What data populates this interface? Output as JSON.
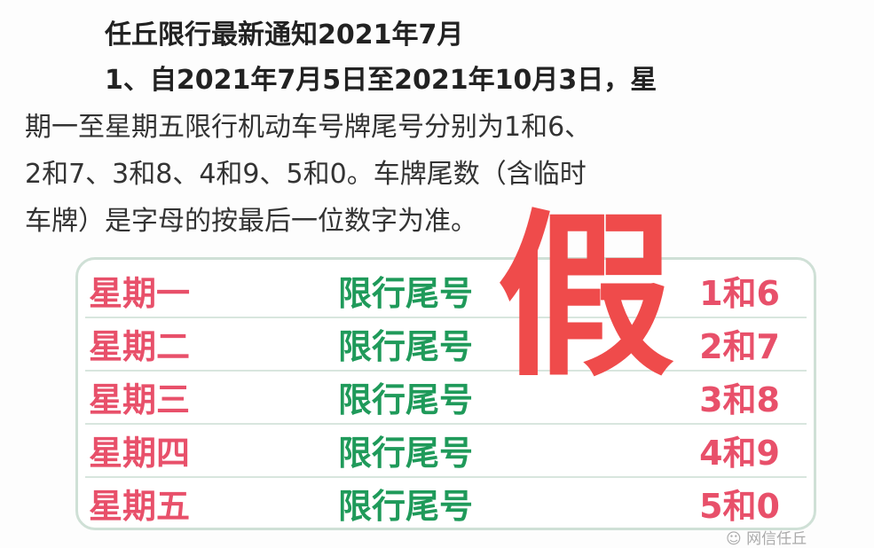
{
  "title": "任丘限行最新通知2021年7月",
  "paragraph": [
    "1、自2021年7月5日至2021年10月3日，星",
    "期一至星期五限行机动车号牌尾号分别为1和6、",
    "2和7、3和8、4和9、5和0。车牌尾数（含临时",
    "车牌）是字母的按最后一位数字为准。"
  ],
  "table": [
    {
      "day": "星期一",
      "label": "限行尾号",
      "numbers": "1和6"
    },
    {
      "day": "星期二",
      "label": "限行尾号",
      "numbers": "2和7"
    },
    {
      "day": "星期三",
      "label": "限行尾号",
      "numbers": "3和8"
    },
    {
      "day": "星期四",
      "label": "限行尾号",
      "numbers": "4和9"
    },
    {
      "day": "星期五",
      "label": "限行尾号",
      "numbers": "5和0"
    }
  ],
  "stamp": "假",
  "watermark": "网信任丘",
  "colors": {
    "red": "#e8506a",
    "green": "#1f9a5a",
    "stamp": "#ef4b4b"
  }
}
